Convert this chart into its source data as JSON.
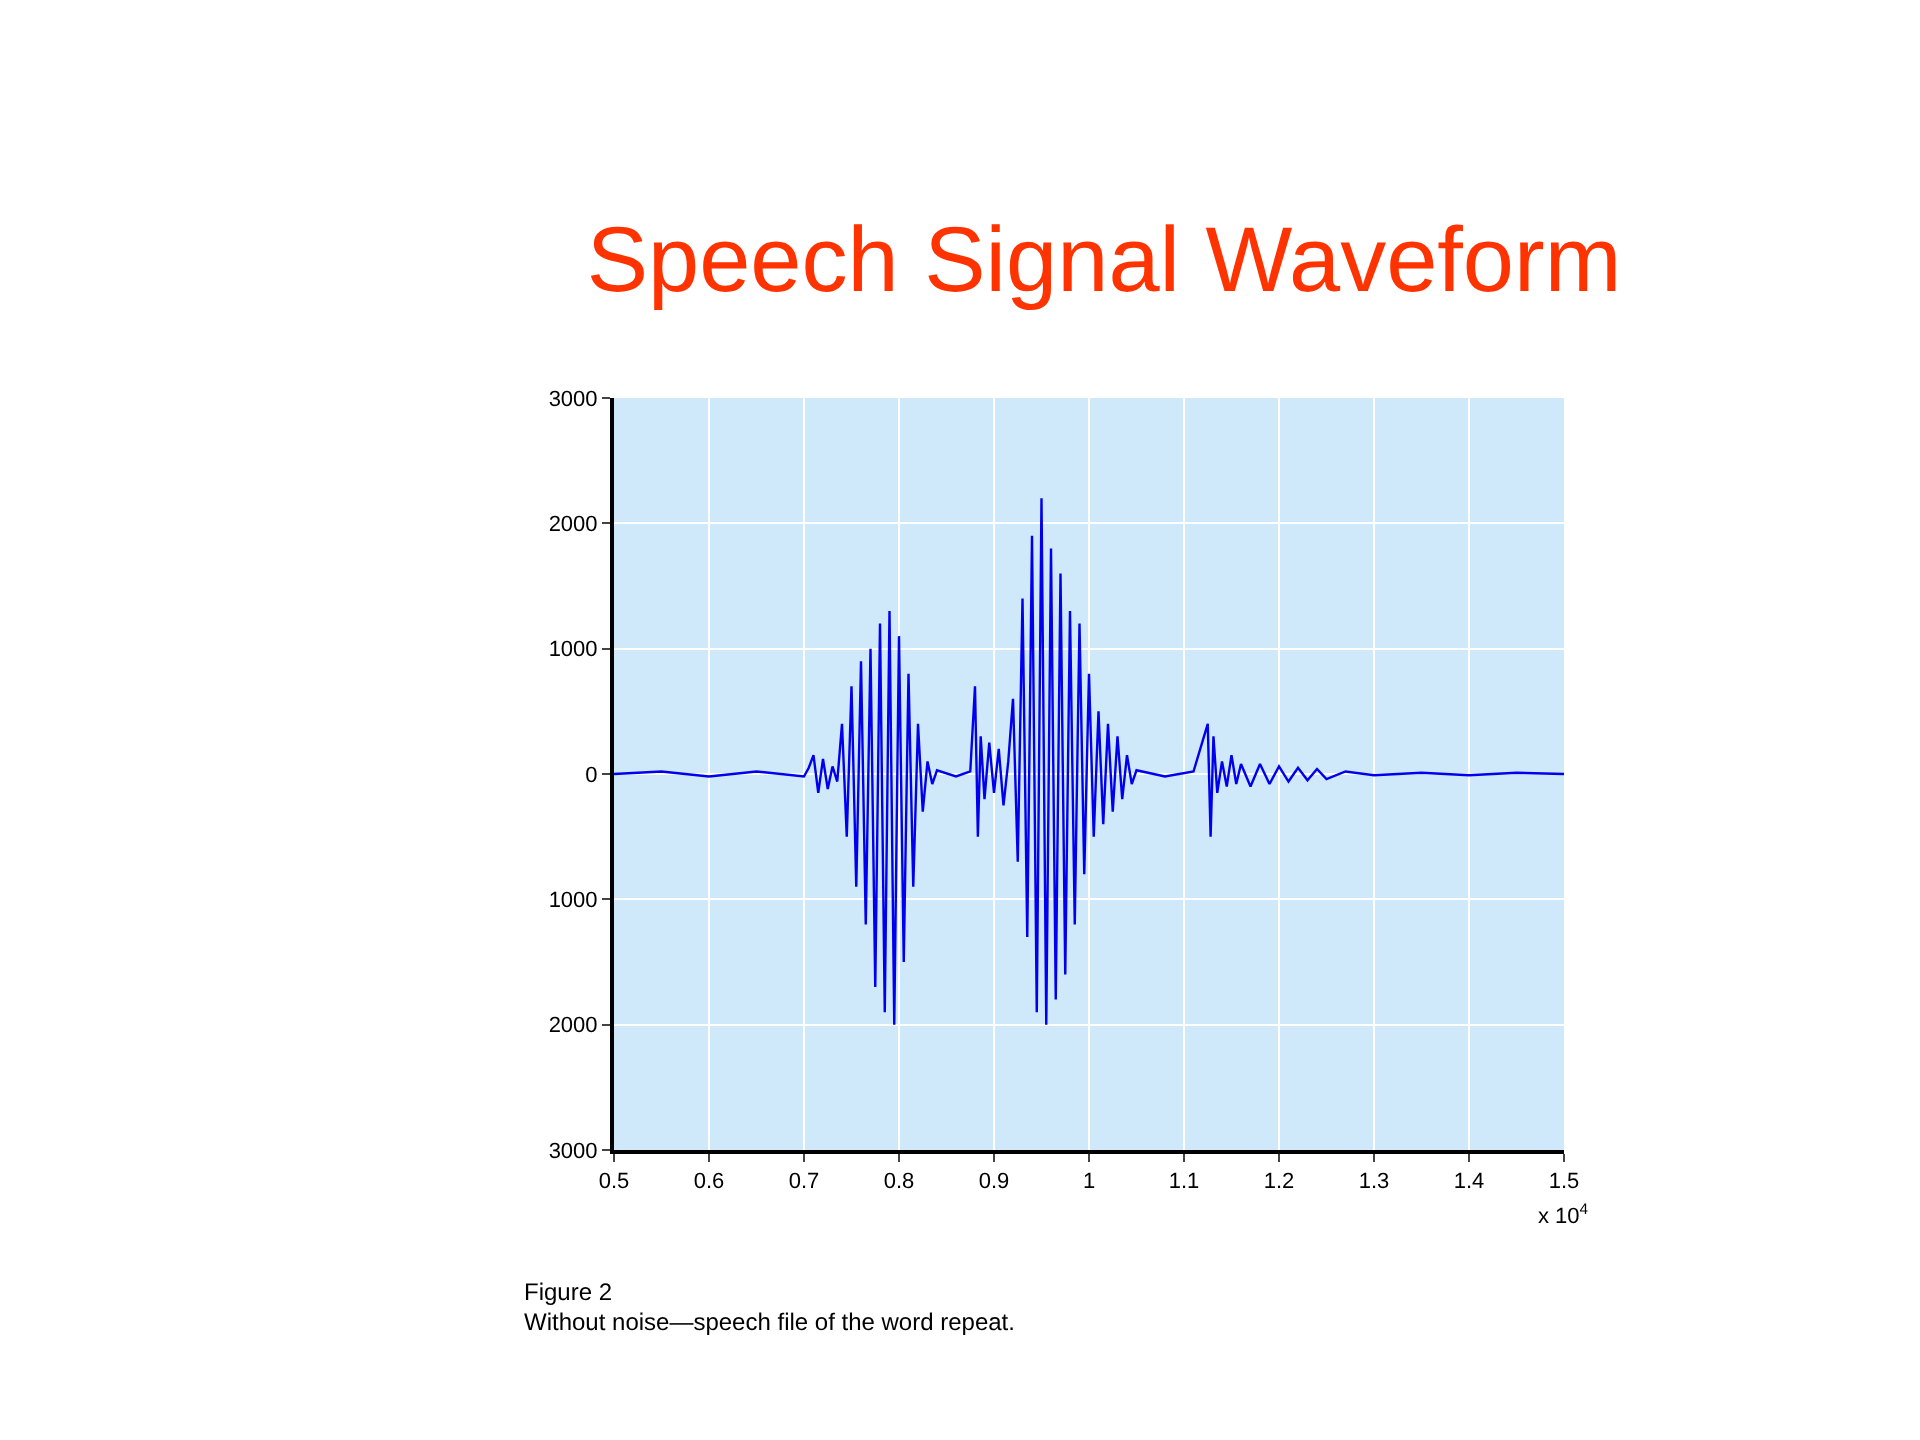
{
  "chart_data": {
    "type": "line",
    "title": "Speech Signal Waveform",
    "x": [
      0.5,
      0.55,
      0.6,
      0.65,
      0.7,
      0.705,
      0.71,
      0.715,
      0.72,
      0.725,
      0.73,
      0.735,
      0.74,
      0.745,
      0.75,
      0.755,
      0.76,
      0.765,
      0.77,
      0.775,
      0.78,
      0.785,
      0.79,
      0.795,
      0.8,
      0.805,
      0.81,
      0.815,
      0.82,
      0.825,
      0.83,
      0.835,
      0.84,
      0.86,
      0.875,
      0.88,
      0.883,
      0.886,
      0.89,
      0.895,
      0.9,
      0.905,
      0.91,
      0.915,
      0.92,
      0.925,
      0.93,
      0.935,
      0.94,
      0.945,
      0.95,
      0.955,
      0.96,
      0.965,
      0.97,
      0.975,
      0.98,
      0.985,
      0.99,
      0.995,
      1.0,
      1.005,
      1.01,
      1.015,
      1.02,
      1.025,
      1.03,
      1.035,
      1.04,
      1.045,
      1.05,
      1.08,
      1.11,
      1.125,
      1.128,
      1.131,
      1.135,
      1.14,
      1.145,
      1.15,
      1.155,
      1.16,
      1.17,
      1.18,
      1.19,
      1.2,
      1.21,
      1.22,
      1.23,
      1.24,
      1.25,
      1.27,
      1.3,
      1.35,
      1.4,
      1.45,
      1.5
    ],
    "series": [
      {
        "color": "#0000ee",
        "values": [
          0,
          20,
          -20,
          20,
          -20,
          50,
          150,
          -150,
          120,
          -120,
          60,
          -60,
          400,
          -500,
          700,
          -900,
          900,
          -1200,
          1000,
          -1700,
          1200,
          -1900,
          1300,
          -2000,
          1100,
          -1500,
          800,
          -900,
          400,
          -300,
          100,
          -80,
          30,
          -20,
          20,
          700,
          -500,
          300,
          -200,
          250,
          -150,
          200,
          -250,
          100,
          600,
          -700,
          1400,
          -1300,
          1900,
          -1900,
          2200,
          -2000,
          1800,
          -1800,
          1600,
          -1600,
          1300,
          -1200,
          1200,
          -800,
          800,
          -500,
          500,
          -400,
          400,
          -300,
          300,
          -200,
          150,
          -80,
          30,
          -20,
          20,
          400,
          -500,
          300,
          -150,
          100,
          -100,
          150,
          -80,
          80,
          -100,
          80,
          -80,
          60,
          -60,
          50,
          -50,
          40,
          -40,
          20,
          -10,
          10,
          -10,
          10,
          0
        ]
      }
    ],
    "xlim": [
      0.5,
      1.5
    ],
    "xticks": [
      0.5,
      0.6,
      0.7,
      0.8,
      0.9,
      1,
      1.1,
      1.2,
      1.3,
      1.4,
      1.5
    ],
    "ylim": [
      -3000,
      3000
    ],
    "yticks": [
      {
        "value": -3000,
        "label": "3000"
      },
      {
        "value": -2000,
        "label": "2000"
      },
      {
        "value": -1000,
        "label": "1000"
      },
      0,
      1000,
      2000,
      3000
    ],
    "grid": true,
    "marker": "none",
    "line_style": "solid",
    "annotations": [
      "x 10$^{4}$",
      "Figure 2",
      "Without noise—speech file of the word repeat."
    ]
  }
}
